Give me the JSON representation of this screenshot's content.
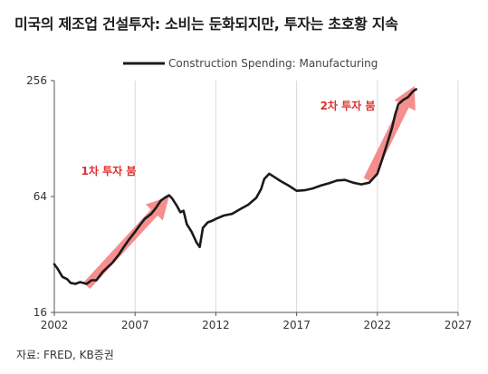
{
  "title": "미국의 제조업 건설투자: 소비는 둔화되지만, 투자는 초호황 지속",
  "source": "자료: FRED, KB증권",
  "chart_data": {
    "type": "line",
    "scale": "log2",
    "legend": "Construction Spending: Manufacturing",
    "legend_position": "top-center",
    "ylim": [
      16,
      256
    ],
    "yticks": [
      16,
      64,
      256
    ],
    "xlim": [
      2002,
      2027
    ],
    "xticks": [
      2002,
      2007,
      2012,
      2017,
      2022,
      2027
    ],
    "grid": "vertical",
    "series": [
      {
        "name": "Construction Spending: Manufacturing",
        "color": "#1a1a1a",
        "points": [
          [
            2002.0,
            28.5
          ],
          [
            2002.2,
            27.0
          ],
          [
            2002.5,
            24.5
          ],
          [
            2002.8,
            23.8
          ],
          [
            2003.0,
            22.8
          ],
          [
            2003.3,
            22.5
          ],
          [
            2003.6,
            23.0
          ],
          [
            2004.0,
            22.5
          ],
          [
            2004.3,
            23.5
          ],
          [
            2004.6,
            23.5
          ],
          [
            2005.0,
            26.0
          ],
          [
            2005.3,
            27.5
          ],
          [
            2005.6,
            29.0
          ],
          [
            2006.0,
            32.0
          ],
          [
            2006.3,
            35.0
          ],
          [
            2006.6,
            38.0
          ],
          [
            2007.0,
            42.0
          ],
          [
            2007.3,
            45.5
          ],
          [
            2007.6,
            49.0
          ],
          [
            2008.0,
            52.0
          ],
          [
            2008.3,
            56.0
          ],
          [
            2008.6,
            61.0
          ],
          [
            2008.9,
            63.5
          ],
          [
            2009.1,
            65.0
          ],
          [
            2009.3,
            62.5
          ],
          [
            2009.6,
            57.0
          ],
          [
            2009.8,
            53.0
          ],
          [
            2010.0,
            54.0
          ],
          [
            2010.2,
            46.0
          ],
          [
            2010.5,
            42.0
          ],
          [
            2010.8,
            37.0
          ],
          [
            2011.0,
            35.0
          ],
          [
            2011.2,
            44.0
          ],
          [
            2011.5,
            47.0
          ],
          [
            2011.8,
            48.0
          ],
          [
            2012.0,
            49.0
          ],
          [
            2012.5,
            51.0
          ],
          [
            2013.0,
            52.0
          ],
          [
            2013.5,
            55.0
          ],
          [
            2014.0,
            58.0
          ],
          [
            2014.5,
            63.0
          ],
          [
            2014.8,
            70.0
          ],
          [
            2015.0,
            79.0
          ],
          [
            2015.3,
            84.0
          ],
          [
            2015.6,
            81.0
          ],
          [
            2016.0,
            77.0
          ],
          [
            2016.5,
            73.0
          ],
          [
            2017.0,
            68.5
          ],
          [
            2017.5,
            69.0
          ],
          [
            2018.0,
            70.5
          ],
          [
            2018.5,
            73.0
          ],
          [
            2019.0,
            75.0
          ],
          [
            2019.5,
            77.5
          ],
          [
            2020.0,
            78.0
          ],
          [
            2020.5,
            75.5
          ],
          [
            2021.0,
            74.0
          ],
          [
            2021.5,
            75.5
          ],
          [
            2022.0,
            84.0
          ],
          [
            2022.3,
            100.0
          ],
          [
            2022.6,
            120.0
          ],
          [
            2022.9,
            145.0
          ],
          [
            2023.1,
            170.0
          ],
          [
            2023.3,
            193.0
          ],
          [
            2023.6,
            203.0
          ],
          [
            2023.9,
            210.0
          ],
          [
            2024.2,
            225.0
          ],
          [
            2024.4,
            231.0
          ]
        ]
      }
    ],
    "annotations": [
      {
        "text": "1차 투자 붐",
        "color": "#e03030",
        "arrow_from": [
          2004.0,
          22.0
        ],
        "arrow_to": [
          2009.1,
          64.0
        ]
      },
      {
        "text": "2차 투자 붐",
        "color": "#e03030",
        "arrow_from": [
          2021.4,
          78.0
        ],
        "arrow_to": [
          2024.3,
          240.0
        ]
      }
    ]
  }
}
